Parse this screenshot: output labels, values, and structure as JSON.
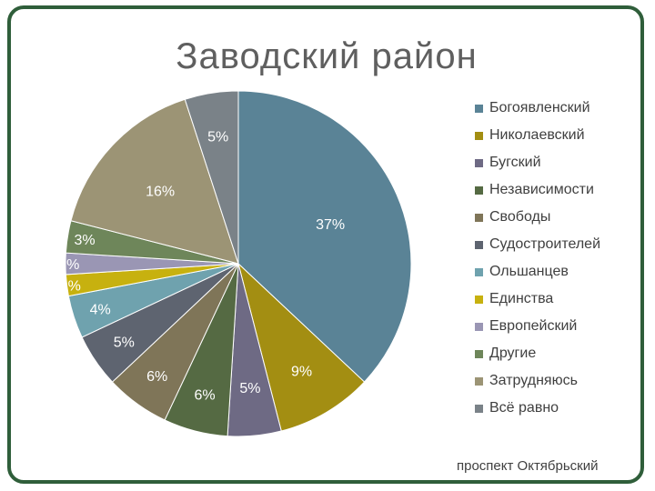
{
  "chart_data": {
    "type": "pie",
    "title": "Заводский район",
    "footer": "проспект Октябрьский",
    "legend_placement": "right",
    "slices": [
      {
        "name": "Богоявленский",
        "value": 37,
        "label": "37%",
        "color": "#5a8396"
      },
      {
        "name": "Николаевский",
        "value": 9,
        "label": "9%",
        "color": "#a38e12"
      },
      {
        "name": "Бугский",
        "value": 5,
        "label": "5%",
        "color": "#6e6a84"
      },
      {
        "name": "Независимости",
        "value": 6,
        "label": "6%",
        "color": "#556a43"
      },
      {
        "name": "Свободы",
        "value": 6,
        "label": "6%",
        "color": "#7f7558"
      },
      {
        "name": "Судостроителей",
        "value": 5,
        "label": "5%",
        "color": "#5e6470"
      },
      {
        "name": "Ольшанцев",
        "value": 4,
        "label": "4%",
        "color": "#6fa2ae"
      },
      {
        "name": "Единства",
        "value": 2,
        "label": "2%",
        "color": "#c7b10f"
      },
      {
        "name": "Европейский",
        "value": 2,
        "label": "2%",
        "color": "#9a96b4"
      },
      {
        "name": "Другие",
        "value": 3,
        "label": "3%",
        "color": "#6e865a"
      },
      {
        "name": "Затрудняюсь",
        "value": 16,
        "label": "16%",
        "color": "#9c9475"
      },
      {
        "name": "Всё равно",
        "value": 5,
        "label": "5%",
        "color": "#7a8288"
      }
    ]
  }
}
